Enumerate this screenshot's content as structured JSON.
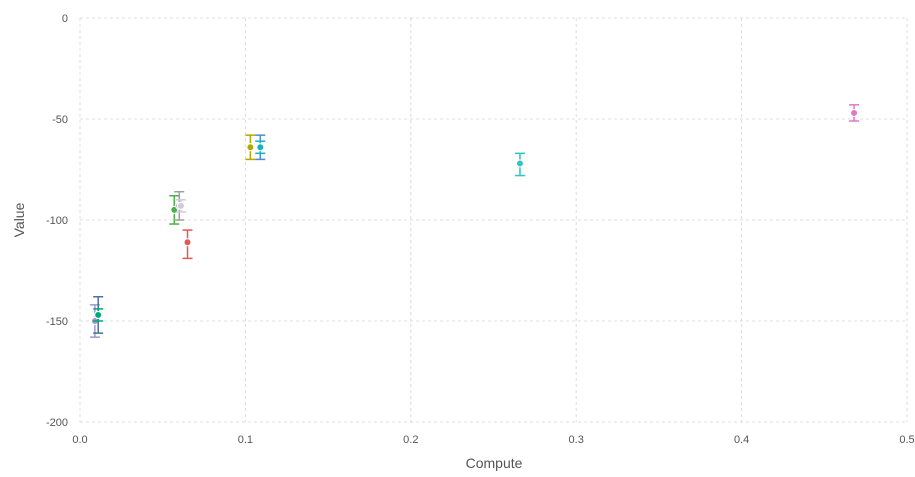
{
  "chart_data": {
    "type": "scatter",
    "title": "",
    "xlabel": "Compute",
    "ylabel": "Value",
    "xlim": [
      0,
      0.5
    ],
    "ylim": [
      -200,
      0
    ],
    "x_ticks": [
      "0.0",
      "0.1",
      "0.2",
      "0.3",
      "0.4",
      "0.5"
    ],
    "y_ticks": [
      "0",
      "-50",
      "-100",
      "-150",
      "-200"
    ],
    "grid": true,
    "error_bars": true,
    "series": [
      {
        "color": "#9e9ac8",
        "x": 0.009,
        "y": -150,
        "yerr_low": -158,
        "yerr_high": -142
      },
      {
        "color": "#4a6fa5",
        "x": 0.011,
        "y": -147,
        "yerr_low": -156,
        "yerr_high": -138
      },
      {
        "color": "#00a878",
        "x": 0.011,
        "y": -147,
        "yerr_low": -150,
        "yerr_high": -144
      },
      {
        "color": "#4daf4a",
        "x": 0.057,
        "y": -95,
        "yerr_low": -102,
        "yerr_high": -88
      },
      {
        "color": "#8fa88f",
        "x": 0.06,
        "y": -93,
        "yerr_low": -100,
        "yerr_high": -86
      },
      {
        "color": "#d3c7e0",
        "x": 0.061,
        "y": -93,
        "yerr_low": -96,
        "yerr_high": -90
      },
      {
        "color": "#e45756",
        "x": 0.065,
        "y": -111,
        "yerr_low": -119,
        "yerr_high": -105
      },
      {
        "color": "#b5a800",
        "x": 0.103,
        "y": -64,
        "yerr_low": -70,
        "yerr_high": -58
      },
      {
        "color": "#4c8bd6",
        "x": 0.109,
        "y": -64,
        "yerr_low": -70,
        "yerr_high": -58
      },
      {
        "color": "#1ab0c4",
        "x": 0.109,
        "y": -64,
        "yerr_low": -67,
        "yerr_high": -61
      },
      {
        "color": "#2ec4c4",
        "x": 0.266,
        "y": -72,
        "yerr_low": -78,
        "yerr_high": -67
      },
      {
        "color": "#e377c2",
        "x": 0.468,
        "y": -47,
        "yerr_low": -51,
        "yerr_high": -43
      }
    ]
  }
}
